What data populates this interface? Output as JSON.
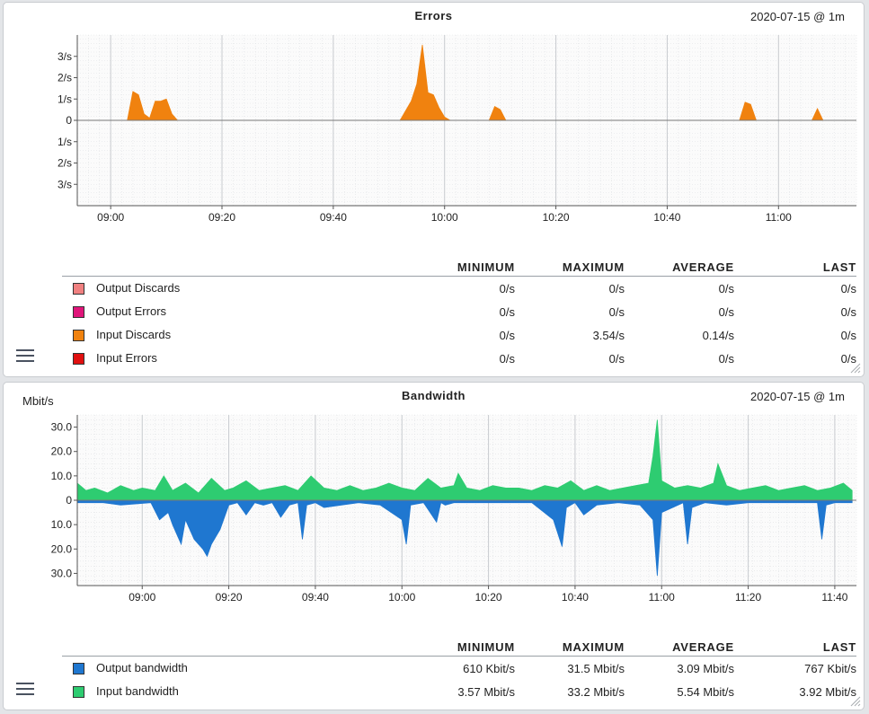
{
  "panels": {
    "errors": {
      "title": "Errors",
      "date": "2020-07-15 @ 1m",
      "legend_headers": [
        "MINIMUM",
        "MAXIMUM",
        "AVERAGE",
        "LAST"
      ],
      "legend": [
        {
          "name": "Output Discards",
          "color": "#f08080",
          "min": "0/s",
          "max": "0/s",
          "avg": "0/s",
          "last": "0/s"
        },
        {
          "name": "Output Errors",
          "color": "#e0157a",
          "min": "0/s",
          "max": "0/s",
          "avg": "0/s",
          "last": "0/s"
        },
        {
          "name": "Input Discards",
          "color": "#f0820f",
          "min": "0/s",
          "max": "3.54/s",
          "avg": "0.14/s",
          "last": "0/s"
        },
        {
          "name": "Input Errors",
          "color": "#e01010",
          "min": "0/s",
          "max": "0/s",
          "avg": "0/s",
          "last": "0/s"
        }
      ]
    },
    "bandwidth": {
      "title": "Bandwidth",
      "date": "2020-07-15 @ 1m",
      "unit": "Mbit/s",
      "legend_headers": [
        "MINIMUM",
        "MAXIMUM",
        "AVERAGE",
        "LAST"
      ],
      "legend": [
        {
          "name": "Output bandwidth",
          "color": "#1f77d0",
          "min": "610 Kbit/s",
          "max": "31.5 Mbit/s",
          "avg": "3.09 Mbit/s",
          "last": "767 Kbit/s"
        },
        {
          "name": "Input bandwidth",
          "color": "#2ecc71",
          "min": "3.57 Mbit/s",
          "max": "33.2 Mbit/s",
          "avg": "5.54 Mbit/s",
          "last": "3.92 Mbit/s"
        }
      ]
    }
  },
  "chart_data": [
    {
      "type": "area",
      "title": "Errors",
      "x_ticks": [
        "09:00",
        "09:20",
        "09:40",
        "10:00",
        "10:20",
        "10:40",
        "11:00"
      ],
      "y_tick_labels": [
        "3/s",
        "2/s",
        "1/s",
        "0",
        "1/s",
        "2/s",
        "3/s"
      ],
      "ylim": [
        -4,
        4
      ],
      "series": [
        {
          "name": "Input Discards",
          "color": "#f0820f",
          "x": [
            "09:03",
            "09:04",
            "09:05",
            "09:06",
            "09:07",
            "09:08",
            "09:09",
            "09:10",
            "09:11",
            "09:12",
            "09:52",
            "09:54",
            "09:55",
            "09:56",
            "09:57",
            "09:58",
            "09:59",
            "10:00",
            "10:01",
            "10:08",
            "10:09",
            "10:10",
            "10:11",
            "10:53",
            "10:54",
            "10:55",
            "10:56",
            "11:06",
            "11:07",
            "11:08"
          ],
          "values": [
            0,
            1.35,
            1.2,
            0.3,
            0.1,
            0.9,
            0.9,
            1.0,
            0.3,
            0,
            0,
            0.9,
            1.7,
            3.54,
            1.3,
            1.2,
            0.6,
            0.15,
            0,
            0,
            0.65,
            0.5,
            0,
            0,
            0.85,
            0.75,
            0,
            0,
            0.55,
            0
          ]
        }
      ]
    },
    {
      "type": "area",
      "title": "Bandwidth",
      "ylabel": "Mbit/s",
      "x_ticks": [
        "09:00",
        "09:20",
        "09:40",
        "10:00",
        "10:20",
        "10:40",
        "11:00",
        "11:20",
        "11:40"
      ],
      "y_tick_labels": [
        "30.0",
        "20.0",
        "10.0",
        "0",
        "10.0",
        "20.0",
        "30.0"
      ],
      "ylim": [
        -35,
        35
      ],
      "series": [
        {
          "name": "Input bandwidth",
          "color": "#2ecc71",
          "x": [
            "08:45",
            "08:47",
            "08:49",
            "08:52",
            "08:55",
            "08:58",
            "09:00",
            "09:03",
            "09:05",
            "09:07",
            "09:10",
            "09:13",
            "09:16",
            "09:19",
            "09:21",
            "09:24",
            "09:27",
            "09:30",
            "09:33",
            "09:36",
            "09:39",
            "09:42",
            "09:45",
            "09:48",
            "09:51",
            "09:54",
            "09:57",
            "10:00",
            "10:03",
            "10:06",
            "10:09",
            "10:12",
            "10:13",
            "10:15",
            "10:18",
            "10:21",
            "10:24",
            "10:27",
            "10:30",
            "10:33",
            "10:36",
            "10:39",
            "10:42",
            "10:45",
            "10:48",
            "10:51",
            "10:54",
            "10:57",
            "10:58",
            "10:59",
            "11:00",
            "11:03",
            "11:06",
            "11:09",
            "11:12",
            "11:13",
            "11:15",
            "11:18",
            "11:21",
            "11:24",
            "11:27",
            "11:30",
            "11:33",
            "11:36",
            "11:39",
            "11:42",
            "11:44"
          ],
          "values": [
            7,
            4,
            5,
            3,
            6,
            4,
            5,
            4,
            10,
            4,
            7,
            3,
            9,
            4,
            5,
            8,
            4,
            5,
            6,
            4,
            10,
            5,
            4,
            6,
            4,
            5,
            7,
            5,
            4,
            9,
            5,
            6,
            11,
            5,
            4,
            6,
            5,
            5,
            4,
            6,
            5,
            8,
            4,
            6,
            4,
            5,
            6,
            7,
            18,
            33,
            8,
            5,
            6,
            5,
            7,
            15,
            6,
            4,
            5,
            6,
            4,
            5,
            6,
            4,
            5,
            7,
            4
          ]
        },
        {
          "name": "Output bandwidth",
          "color": "#1f77d0",
          "x": [
            "08:45",
            "08:51",
            "08:55",
            "09:02",
            "09:04",
            "09:06",
            "09:07",
            "09:09",
            "09:10",
            "09:12",
            "09:14",
            "09:15",
            "09:16",
            "09:18",
            "09:20",
            "09:22",
            "09:24",
            "09:26",
            "09:28",
            "09:30",
            "09:32",
            "09:34",
            "09:36",
            "09:37",
            "09:38",
            "09:40",
            "09:42",
            "09:50",
            "09:55",
            "10:00",
            "10:01",
            "10:02",
            "10:05",
            "10:08",
            "10:09",
            "10:10",
            "10:12",
            "10:20",
            "10:30",
            "10:35",
            "10:37",
            "10:38",
            "10:40",
            "10:42",
            "10:45",
            "10:50",
            "10:55",
            "10:58",
            "10:59",
            "11:00",
            "11:05",
            "11:06",
            "11:07",
            "11:10",
            "11:15",
            "11:20",
            "11:30",
            "11:36",
            "11:37",
            "11:38",
            "11:40",
            "11:44"
          ],
          "values": [
            -1,
            -1,
            -2,
            -1,
            -8,
            -5,
            -10,
            -18,
            -8,
            -16,
            -20,
            -23,
            -18,
            -12,
            -2,
            -1,
            -6,
            -1,
            -2,
            -1,
            -7,
            -2,
            -1,
            -16,
            -2,
            -1,
            -3,
            -1,
            -2,
            -8,
            -18,
            -2,
            -1,
            -9,
            -1,
            -2,
            -1,
            -1,
            -1,
            -8,
            -19,
            -3,
            -1,
            -6,
            -2,
            -1,
            -2,
            -8,
            -31,
            -5,
            -1,
            -18,
            -3,
            -1,
            -2,
            -1,
            -1,
            -1,
            -16,
            -2,
            -1,
            -1
          ]
        }
      ]
    }
  ]
}
